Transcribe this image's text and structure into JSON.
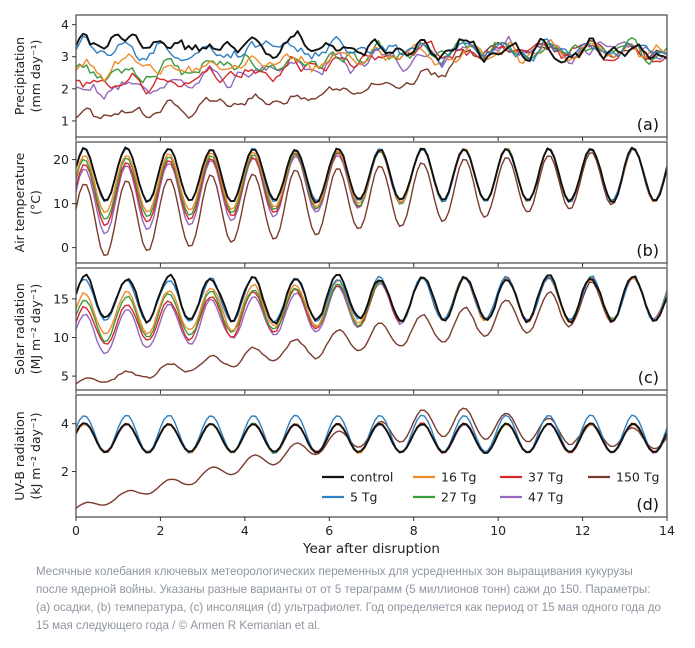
{
  "caption": "Месячные колебания ключевых метеорологических переменных для усредненных зон выращивания кукурузы после ядерной войны. Указаны разные варианты от от 5 тераграмм (5 миллионов тонн) сажи до 150. Параметры: (а) осадки, (b) температура, (c) инсоляция (d) ультрафиолет. Год определяется как период от 15 мая одного года до 15 мая следующего года / © Armen R Kemanian et al.",
  "chart_data": {
    "type": "line",
    "xlabel": "Year after disruption",
    "x_ticks": [
      0,
      2,
      4,
      6,
      8,
      10,
      12,
      14
    ],
    "xlim": [
      0,
      14
    ],
    "grid": false,
    "legend_placement": "inside panel (d), right",
    "series": [
      {
        "name": "control",
        "color": "#111111"
      },
      {
        "name": "5 Tg",
        "color": "#2f7fc1"
      },
      {
        "name": "16 Tg",
        "color": "#ef8b2c"
      },
      {
        "name": "27 Tg",
        "color": "#3b9c3b"
      },
      {
        "name": "37 Tg",
        "color": "#d42a2e"
      },
      {
        "name": "47 Tg",
        "color": "#9467bd"
      },
      {
        "name": "150 Tg",
        "color": "#7a3b2c"
      }
    ],
    "panels": [
      {
        "label": "(a)",
        "ylabel": "Precipitation",
        "yunit": "(mm day⁻¹)",
        "ylim": [
          0.5,
          4.3
        ],
        "yticks": [
          1,
          2,
          3,
          4
        ],
        "seasonal": false,
        "season_amplitude": 0.3,
        "start_values": [
          3.5,
          3.2,
          2.55,
          2.4,
          2.05,
          1.85,
          1.05
        ],
        "values_at_year_8": [
          3.2,
          3.2,
          3.1,
          3.05,
          3.05,
          3.0,
          2.15
        ],
        "end_values": [
          3.2,
          3.2,
          3.2,
          3.2,
          3.2,
          3.2,
          3.2
        ]
      },
      {
        "label": "(b)",
        "ylabel": "Air temperature",
        "yunit": "(°C)",
        "ylim": [
          -3.5,
          24
        ],
        "yticks": [
          0,
          10,
          20
        ],
        "seasonal": true,
        "season_peak": 22.5,
        "season_trough": 10.5,
        "peak_anomaly_start": [
          0,
          0,
          -1.5,
          -2.5,
          -3.5,
          -4.5,
          -8
        ],
        "trough_anomaly_start": [
          0,
          0,
          -3,
          -4.5,
          -6,
          -8,
          -13
        ],
        "recovered_by_year": 8.5,
        "recovered_by_year_150Tg": 13.5
      },
      {
        "label": "(c)",
        "ylabel": "Solar radiation",
        "yunit": "(MJ m⁻² day⁻¹)",
        "ylim": [
          3.2,
          19
        ],
        "yticks": [
          5,
          10,
          15
        ],
        "seasonal": true,
        "season_peak": 17.8,
        "season_trough": 12.2,
        "peak_anomaly_start": [
          0,
          -0.3,
          -2,
          -3,
          -4,
          -5,
          -13.5
        ],
        "trough_anomaly_start": [
          0,
          -0.3,
          -2,
          -2.8,
          -3.6,
          -4.5,
          -8.5
        ],
        "recovered_by_year": 8.5,
        "recovered_by_year_150Tg": 13
      },
      {
        "label": "(d)",
        "ylabel": "UV-B radiation",
        "yunit": "(kJ m⁻² day⁻¹)",
        "ylim": [
          0.1,
          5.2
        ],
        "yticks": [
          2,
          4
        ],
        "seasonal": true,
        "season_peak": 4.0,
        "season_trough": 2.8,
        "peak_5Tg": 4.35,
        "series_150Tg": {
          "start": 0.45,
          "year_6": 3.2,
          "year_8.5_peak": 4.9,
          "end_peak": 4.1,
          "end_trough": 2.6
        }
      }
    ]
  }
}
